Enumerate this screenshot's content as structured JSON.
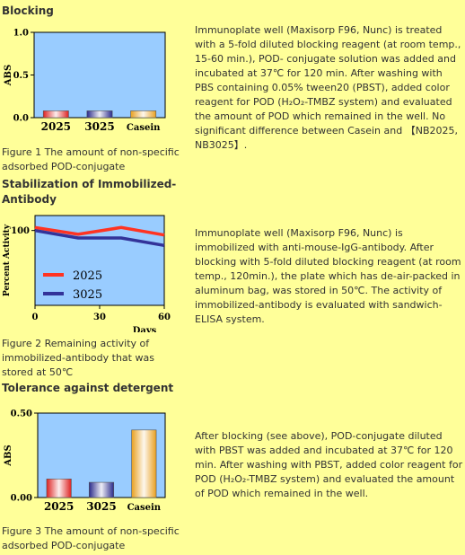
{
  "sections": [
    {
      "heading": "Blocking",
      "caption": "Figure 1 The amount of non-specific adsorbed POD-conjugate",
      "paragraph": "Immunoplate well (Maxisorp F96, Nunc) is treated with a 5-fold diluted blocking reagent (at room temp., 15-60 min.), POD- conjugate solution was added and incubated at 37℃ for 120 min. After washing with PBS containing 0.05% tween20 (PBST), added color reagent for POD (H₂O₂-TMBZ system) and evaluated the amount of POD which remained in the well. No significant difference between Casein and 【NB2025, NB3025】."
    },
    {
      "heading": "Stabilization of Immobilized-Antibody",
      "caption": "Figure 2 Remaining activity of immobilized-antibody that was stored at 50℃",
      "paragraph": "Immunoplate well (Maxisorp F96, Nunc) is immobilized with anti-mouse-IgG-antibody. After blocking with 5-fold diluted blocking reagent (at room temp., 120min.), the plate which has de-air-packed in aluminum bag, was stored in 50℃. The activity of immobilized-antibody is evaluated with sandwich-ELISA system."
    },
    {
      "heading": "Tolerance against detergent",
      "caption": "Figure 3 The amount of non-specific adsorbed POD-conjugate",
      "paragraph": "After blocking (see above), POD-conjugate diluted with PBST was added and incubated at 37℃ for 120 min. After washing with PBST, added color reagent for POD (H₂O₂-TMBZ system) and evaluated the amount of POD which remained in the well."
    }
  ],
  "chart_data": [
    {
      "type": "bar",
      "ylabel": "ABS",
      "ylim": [
        0,
        1.0
      ],
      "yticks": [
        "0.0",
        "0.5",
        "1.0"
      ],
      "categories": [
        "2025",
        "3025",
        "Casein"
      ],
      "values": [
        0.08,
        0.08,
        0.08
      ],
      "colors": [
        "#dd2222",
        "#2a2a8a",
        "#e8a020"
      ]
    },
    {
      "type": "line",
      "ylabel": "Percent Activity",
      "xlabel": "Days",
      "xlim": [
        0,
        60
      ],
      "xticks": [
        "0",
        "30",
        "60"
      ],
      "ylim": [
        0,
        120
      ],
      "yticks": [
        "100"
      ],
      "legend_position": "bottom-left",
      "series": [
        {
          "name": "2025",
          "color": "#ff3322",
          "x": [
            0,
            20,
            40,
            60
          ],
          "y": [
            104,
            95,
            104,
            94
          ]
        },
        {
          "name": "3025",
          "color": "#333399",
          "x": [
            0,
            20,
            40,
            60
          ],
          "y": [
            100,
            90,
            90,
            80
          ]
        }
      ]
    },
    {
      "type": "bar",
      "ylabel": "ABS",
      "ylim": [
        0,
        0.5
      ],
      "yticks": [
        "0.00",
        "0.50"
      ],
      "categories": [
        "2025",
        "3025",
        "Casein"
      ],
      "values": [
        0.11,
        0.09,
        0.4
      ],
      "colors": [
        "#dd2222",
        "#2a2a8a",
        "#e8a020"
      ]
    }
  ]
}
